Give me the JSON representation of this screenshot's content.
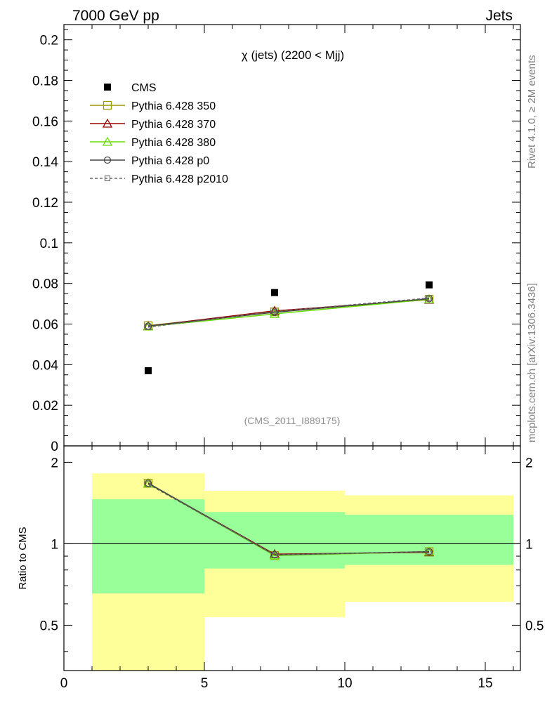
{
  "header": {
    "left": "7000 GeV pp",
    "right": "Jets",
    "side_top": "Rivet 4.1.0, ≥ 2M events",
    "side_bottom": "mcplots.cern.ch [arXiv:1306.3436]"
  },
  "chart_data": [
    {
      "type": "scatter",
      "panel": "main",
      "title": "χ (jets) (2200 < Mjj)",
      "annotation": "(CMS_2011_I889175)",
      "xlabel": "",
      "ylabel": "",
      "xlim": [
        0,
        16.25
      ],
      "ylim": [
        0,
        0.2075
      ],
      "y_ticks": [
        0,
        0.02,
        0.04,
        0.06,
        0.08,
        0.1,
        0.12,
        0.14,
        0.16,
        0.18,
        0.2
      ],
      "y_tick_labels": [
        "0",
        "0.02",
        "0.04",
        "0.06",
        "0.08",
        "0.1",
        "0.12",
        "0.14",
        "0.16",
        "0.18",
        "0.2"
      ],
      "x": [
        3,
        7.5,
        13
      ],
      "legend_position": "top-left",
      "series": [
        {
          "name": "CMS",
          "marker": "filled-square",
          "color": "#000000",
          "line": "none",
          "values": [
            0.037,
            0.0755,
            0.0793
          ]
        },
        {
          "name": "Pythia 6.428 350",
          "marker": "open-square",
          "color": "#999900",
          "line": "solid",
          "values": [
            0.0592,
            0.066,
            0.0722
          ]
        },
        {
          "name": "Pythia 6.428 370",
          "marker": "open-triangle",
          "color": "#990000",
          "line": "solid",
          "values": [
            0.059,
            0.0665,
            0.072
          ]
        },
        {
          "name": "Pythia 6.428 380",
          "marker": "open-triangle",
          "color": "#66dd00",
          "line": "solid",
          "values": [
            0.0588,
            0.065,
            0.0722
          ]
        },
        {
          "name": "Pythia 6.428 p0",
          "marker": "open-circle",
          "color": "#444444",
          "line": "solid",
          "values": [
            0.059,
            0.0658,
            0.0725
          ]
        },
        {
          "name": "Pythia 6.428 p2010",
          "marker": "open-square-small",
          "color": "#666666",
          "line": "dashed",
          "values": [
            0.0585,
            0.0662,
            0.0728
          ]
        }
      ]
    },
    {
      "type": "line",
      "panel": "ratio",
      "ylabel": "Ratio to CMS",
      "xlim": [
        0,
        16.25
      ],
      "ylim": [
        0.34,
        2.3
      ],
      "y_ticks": [
        0.5,
        1,
        2
      ],
      "y_tick_labels": [
        "0.5",
        "1",
        "2"
      ],
      "x_ticks": [
        0,
        5,
        10,
        15
      ],
      "x_tick_labels": [
        "0",
        "5",
        "10",
        "15"
      ],
      "x": [
        3,
        7.5,
        13
      ],
      "reference_line": 1,
      "bands": [
        {
          "xmin": 1,
          "xmax": 5,
          "inner": [
            0.655,
            1.46
          ],
          "outer": [
            0.34,
            1.82
          ]
        },
        {
          "xmin": 5,
          "xmax": 10,
          "inner": [
            0.81,
            1.31
          ],
          "outer": [
            0.535,
            1.57
          ]
        },
        {
          "xmin": 10,
          "xmax": 16,
          "inner": [
            0.835,
            1.28
          ],
          "outer": [
            0.61,
            1.51
          ]
        }
      ],
      "band_colors": {
        "inner": "#99ff99",
        "outer": "#ffff99"
      },
      "series": [
        {
          "name": "Pythia 6.428 350",
          "marker": "open-square",
          "color": "#999900",
          "line": "solid",
          "values": [
            1.675,
            0.905,
            0.935
          ]
        },
        {
          "name": "Pythia 6.428 370",
          "marker": "open-triangle",
          "color": "#990000",
          "line": "solid",
          "values": [
            1.67,
            0.915,
            0.93
          ]
        },
        {
          "name": "Pythia 6.428 380",
          "marker": "open-triangle",
          "color": "#66dd00",
          "line": "solid",
          "values": [
            1.67,
            0.905,
            0.935
          ]
        },
        {
          "name": "Pythia 6.428 p0",
          "marker": "open-circle",
          "color": "#444444",
          "line": "solid",
          "values": [
            1.675,
            0.91,
            0.935
          ]
        },
        {
          "name": "Pythia 6.428 p2010",
          "marker": "open-square-small",
          "color": "#666666",
          "line": "dashed",
          "values": [
            1.66,
            0.91,
            0.935
          ]
        }
      ]
    }
  ]
}
